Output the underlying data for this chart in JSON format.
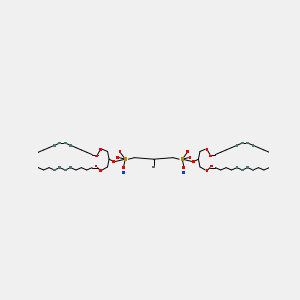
{
  "bg_color": "#f0f0f0",
  "line_color": "#000000",
  "red_color": "#ee0000",
  "gold_color": "#b8860b",
  "blue_color": "#0044cc",
  "teal_color": "#4a7878",
  "gray_color": "#5a7070",
  "figsize": [
    3.0,
    3.0
  ],
  "dpi": 100,
  "lw": 0.7
}
